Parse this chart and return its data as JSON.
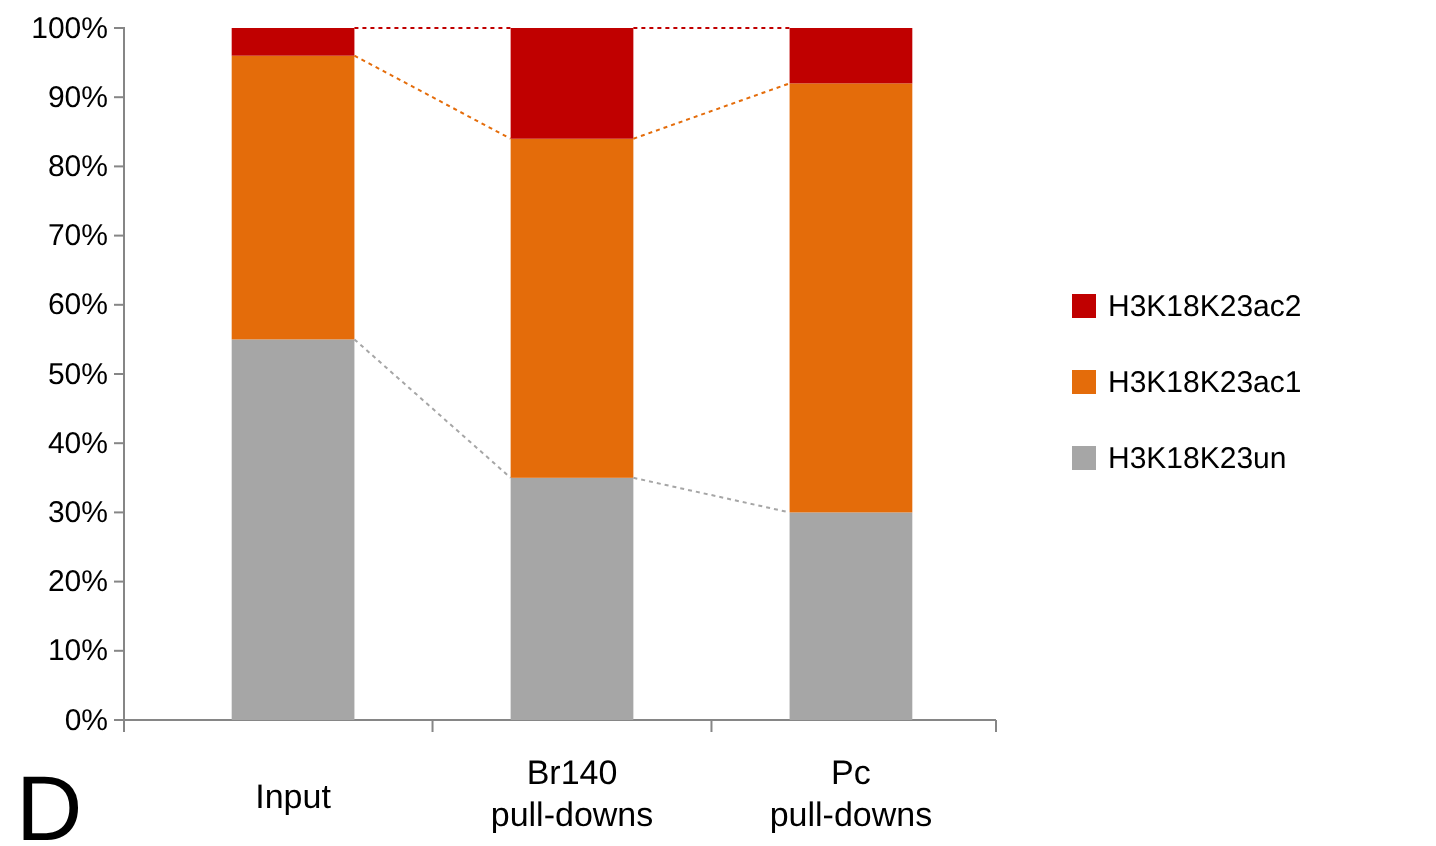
{
  "chart_data": {
    "type": "bar",
    "stacked": true,
    "categories": [
      "Input",
      "Br140\npull-downs",
      "Pc\npull-downs"
    ],
    "series": [
      {
        "name": "H3K18K23un",
        "color": "#a6a6a6",
        "values": [
          55,
          35,
          30
        ]
      },
      {
        "name": "H3K18K23ac1",
        "color": "#e46c0a",
        "values": [
          41,
          49,
          62
        ]
      },
      {
        "name": "H3K18K23ac2",
        "color": "#c00000",
        "values": [
          4,
          16,
          8
        ]
      }
    ],
    "ylim": [
      0,
      100
    ],
    "yticks": [
      {
        "value": 0,
        "label": "0%"
      },
      {
        "value": 10,
        "label": "10%"
      },
      {
        "value": 20,
        "label": "20%"
      },
      {
        "value": 30,
        "label": "30%"
      },
      {
        "value": 40,
        "label": "40%"
      },
      {
        "value": 50,
        "label": "50%"
      },
      {
        "value": 60,
        "label": "60%"
      },
      {
        "value": 70,
        "label": "70%"
      },
      {
        "value": 80,
        "label": "80%"
      },
      {
        "value": 90,
        "label": "90%"
      },
      {
        "value": 100,
        "label": "100%"
      }
    ],
    "legend": "right",
    "grid": false,
    "annotations": [
      "D"
    ]
  }
}
